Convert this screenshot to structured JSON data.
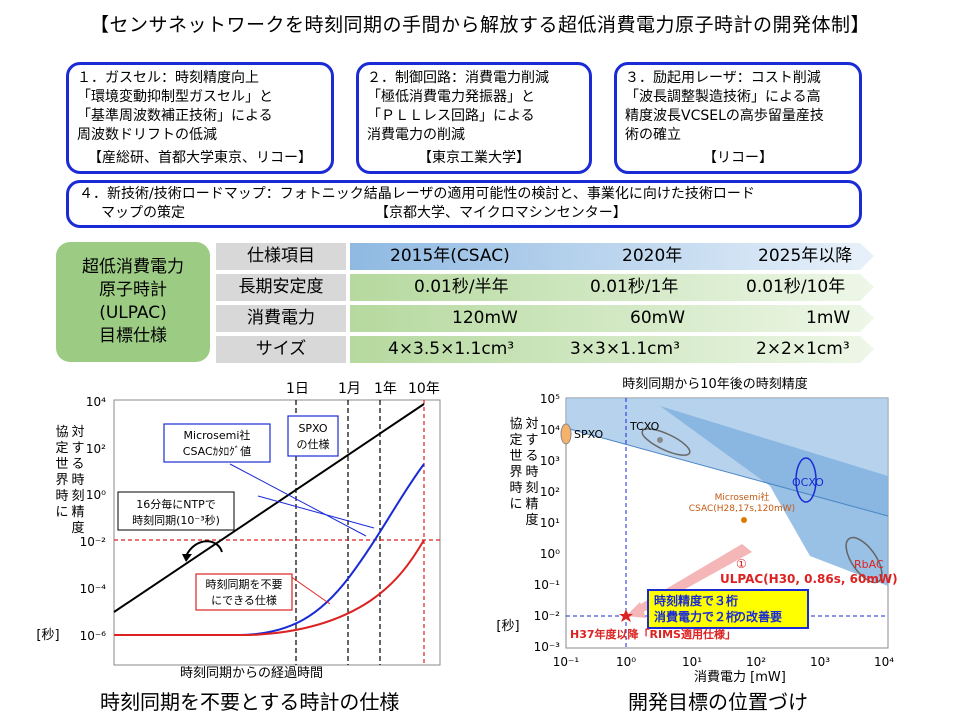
{
  "title": "【センサネットワークを時刻同期の手間から解放する超低消費電力原子時計の開発体制】",
  "boxes": [
    {
      "text": "１．ガスセル：時刻精度向上\n「環境変動抑制型ガスセル」と\n「基準周波数補正技術」による\n周波数ドリフトの低減",
      "org": "【産総研、首都大学東京、リコー】"
    },
    {
      "text": "２．制御回路：消費電力削減\n「極低消費電力発振器」と\n「ＰＬＬレス回路」による\n消費電力の削減",
      "org": "【東京工業大学】"
    },
    {
      "text": "３．励起用レーザ：コスト削減\n「波長調整製造技術」による高\n精度波長VCSELの高歩留量産技\n術の確立",
      "org": "【リコー】"
    }
  ],
  "box4": {
    "line1": "４．新技術/技術ロードマップ：フォトニック結晶レーザの適用可能性の検討と、事業化に向けた技術ロード",
    "line2": "マップの策定",
    "org": "【京都大学、マイクロマシンセンター】"
  },
  "spec": {
    "label": [
      "超低消費電力",
      "原子時計",
      "(ULPAC)",
      "目標仕様"
    ],
    "rows": [
      {
        "head": "仕様項目",
        "values": [
          "2015年(CSAC)",
          "2020年",
          "2025年以降"
        ]
      },
      {
        "head": "長期安定度",
        "values": [
          "0.01秒/半年",
          "0.01秒/1年",
          "0.01秒/10年"
        ]
      },
      {
        "head": "消費電力",
        "values": [
          "120mW",
          "60mW",
          "1mW"
        ]
      },
      {
        "head": "サイズ",
        "values": [
          "4×3.5×1.1cm³",
          "3×3×1.1cm³",
          "2×2×1cm³"
        ]
      }
    ]
  },
  "left_chart": {
    "top_labels": [
      "1日",
      "1月",
      "1年",
      "10年"
    ],
    "ylabel": "協定世界時に対する時刻精度",
    "yunit": "[秒]",
    "xlabel": "時刻同期からの経過時間",
    "yticks": [
      "10⁴",
      "10²",
      "10⁰",
      "10⁻²",
      "10⁻⁴",
      "10⁻⁶"
    ],
    "callout_csac": "Microsemi社\nCSACｶﾀﾛｸﾞ値",
    "callout_spxo": "SPXO\nの仕様",
    "callout_ntp": "16分毎にNTPで\n時刻同期(10⁻³秒)",
    "callout_red": "時刻同期を不要\nにできる仕様",
    "caption": "時刻同期を不要とする時計の仕様"
  },
  "right_chart": {
    "title": "時刻同期から10年後の時刻精度",
    "ylabel": "協定世界時に対する時刻精度",
    "yunit": "[秒]",
    "xlabel": "消費電力 [mW]",
    "xticks": [
      "10⁻¹",
      "10⁰",
      "10¹",
      "10²",
      "10³",
      "10⁴"
    ],
    "yticks": [
      "10⁵",
      "10⁴",
      "10³",
      "10²",
      "10¹",
      "10⁰",
      "10⁻¹",
      "10⁻²",
      "10⁻³"
    ],
    "labels": {
      "spxo": "SPXO",
      "tcxo": "TCXO",
      "ocxo": "OCXO",
      "rbac": "RbAC",
      "csac": "Microsemi社\nCSAC(H28,17s,120mW)"
    },
    "ulpac": "ULPAC(H30, 0.86s, 60mW)",
    "marker1": "①",
    "improve": "時刻精度で３桁\n消費電力で２桁",
    "improve_suffix": "の改善要",
    "target": "H37年度以降「RIMS適用仕様」",
    "caption": "開発目標の位置づけ"
  },
  "colors": {
    "box_border": "#1a2bd6",
    "spec_green": "#9ccb84",
    "band_blue": "#9dc3e6",
    "band_green": "#c9e3b9",
    "region": "#6fa8dc"
  }
}
